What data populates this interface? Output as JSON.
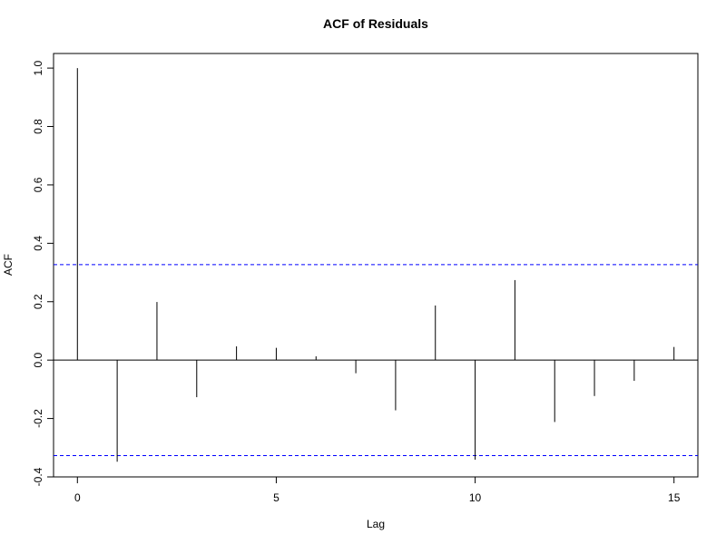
{
  "chart_data": {
    "type": "bar",
    "title": "ACF of Residuals",
    "xlabel": "Lag",
    "ylabel": "ACF",
    "xlim": [
      -0.6,
      15.6
    ],
    "ylim": [
      -0.4,
      1.05
    ],
    "x_ticks": [
      0,
      5,
      10,
      15
    ],
    "y_ticks": [
      -0.4,
      -0.2,
      0.0,
      0.2,
      0.4,
      0.6,
      0.8,
      1.0
    ],
    "x_tick_labels": [
      "0",
      "5",
      "10",
      "15"
    ],
    "y_tick_labels": [
      "-0.4",
      "-0.2",
      "0.0",
      "0.2",
      "0.4",
      "0.6",
      "0.8",
      "1.0"
    ],
    "lags": [
      0,
      1,
      2,
      3,
      4,
      5,
      6,
      7,
      8,
      9,
      10,
      11,
      12,
      13,
      14,
      15
    ],
    "values": [
      1.0,
      -0.348,
      0.199,
      -0.127,
      0.047,
      0.042,
      0.013,
      -0.045,
      -0.172,
      0.187,
      -0.341,
      0.274,
      -0.212,
      -0.123,
      -0.071,
      0.045
    ],
    "confidence_bound": 0.327,
    "grid": false,
    "colors": {
      "bars": "#000000",
      "confidence_lines": "#0000ff",
      "axes": "#000000"
    }
  }
}
